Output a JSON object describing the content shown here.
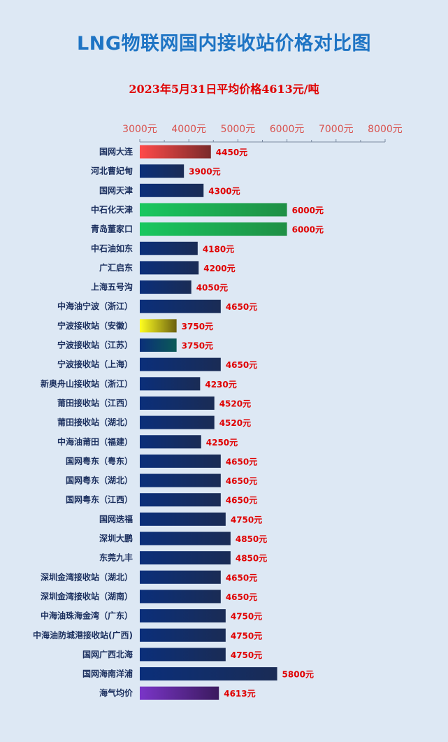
{
  "title": "LNG物联网国内接收站价格对比图",
  "subtitle": "2023年5月31日平均价格4613元/吨",
  "colors": {
    "default": [
      "#0b2f7a",
      "#1a2c55"
    ],
    "red": [
      "#ff4a4a",
      "#7a2a2a"
    ],
    "green": [
      "#19c860",
      "#1f8f45"
    ],
    "yellow": [
      "#ffff20",
      "#6b6010"
    ],
    "teal": [
      "#0b2f7a",
      "#0b5a56"
    ],
    "purple": [
      "#7a35c8",
      "#3b1a5e"
    ]
  },
  "chart_data": {
    "type": "bar",
    "orientation": "horizontal",
    "xlim": [
      3000,
      8000
    ],
    "ticks": [
      "3000元",
      "4000元",
      "5000元",
      "6000元",
      "7000元",
      "8000元"
    ],
    "tick_values": [
      3000,
      4000,
      5000,
      6000,
      7000,
      8000
    ],
    "categories": [
      "国网大连",
      "河北曹妃甸",
      "国网天津",
      "中石化天津",
      "青岛董家口",
      "中石油如东",
      "广汇启东",
      "上海五号沟",
      "中海油宁波（浙江）",
      "宁波接收站（安徽）",
      "宁波接收站（江苏）",
      "宁波接收站（上海）",
      "新奥舟山接收站（浙江）",
      "莆田接收站（江西）",
      "莆田接收站（湖北）",
      "中海油莆田（福建）",
      "国网粤东（粤东）",
      "国网粤东（湖北）",
      "国网粤东（江西）",
      "国网迭福",
      "深圳大鹏",
      "东莞九丰",
      "深圳金湾接收站（湖北）",
      "深圳金湾接收站（湖南）",
      "中海油珠海金湾（广东）",
      "中海油防城港接收站(广西)",
      "国网广西北海",
      "国网海南洋浦",
      "海气均价"
    ],
    "values": [
      4450,
      3900,
      4300,
      6000,
      6000,
      4180,
      4200,
      4050,
      4650,
      3750,
      3750,
      4650,
      4230,
      4520,
      4520,
      4250,
      4650,
      4650,
      4650,
      4750,
      4850,
      4850,
      4650,
      4650,
      4750,
      4750,
      4750,
      5800,
      4613
    ],
    "value_labels": [
      "4450元",
      "3900元",
      "4300元",
      "6000元",
      "6000元",
      "4180元",
      "4200元",
      "4050元",
      "4650元",
      "3750元",
      "3750元",
      "4650元",
      "4230元",
      "4520元",
      "4520元",
      "4250元",
      "4650元",
      "4650元",
      "4650元",
      "4750元",
      "4850元",
      "4850元",
      "4650元",
      "4650元",
      "4750元",
      "4750元",
      "4750元",
      "5800元",
      "4613元"
    ],
    "bar_colors": [
      "red",
      "default",
      "default",
      "green",
      "green",
      "default",
      "default",
      "default",
      "default",
      "yellow",
      "teal",
      "default",
      "default",
      "default",
      "default",
      "default",
      "default",
      "default",
      "default",
      "default",
      "default",
      "default",
      "default",
      "default",
      "default",
      "default",
      "default",
      "default",
      "purple"
    ],
    "axis_position": "top",
    "grid": false,
    "legend": "none"
  }
}
